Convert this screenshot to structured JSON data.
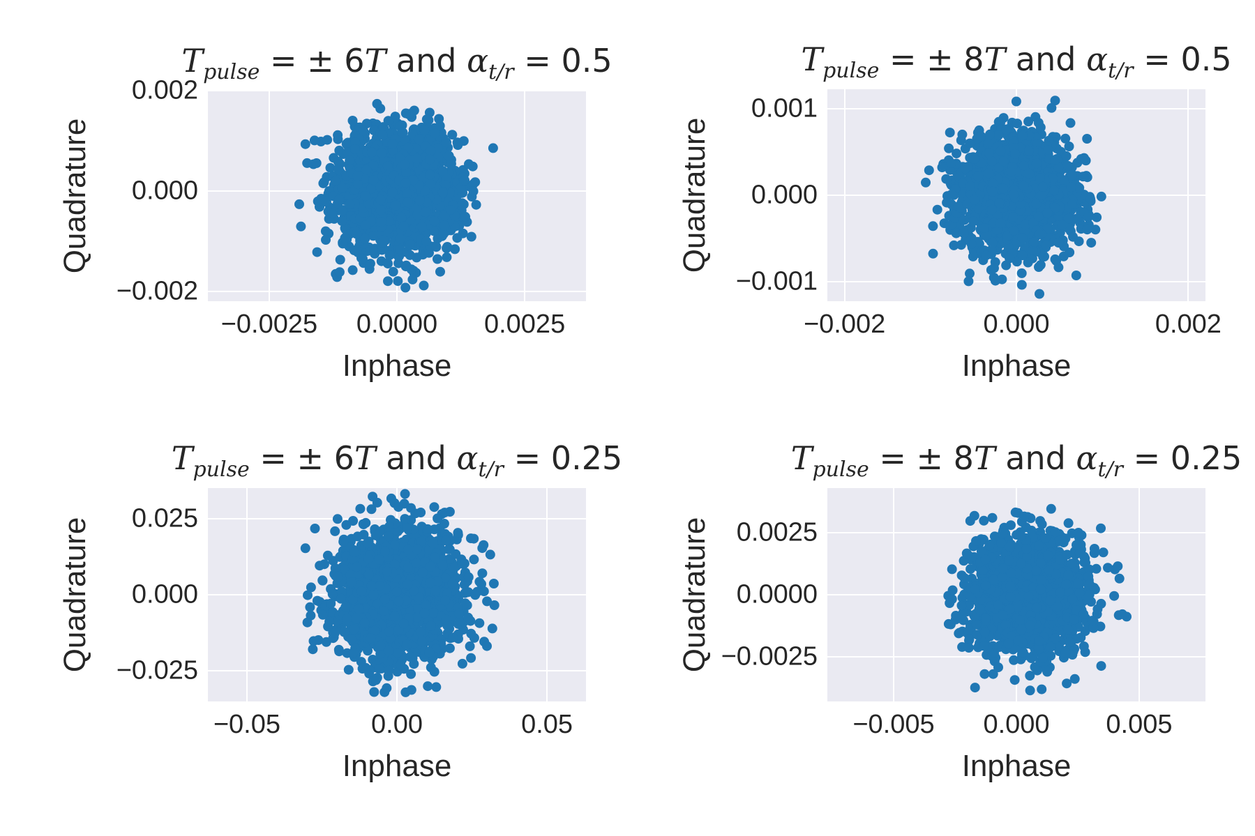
{
  "figure": {
    "point_color": "#1f77b4",
    "background_color": "#eaeaf2",
    "grid_color": "#ffffff"
  },
  "chart_data": [
    {
      "type": "scatter",
      "title": "T_pulse = ± 6T and α_t/r = 0.5",
      "title_parts": {
        "T": "T",
        "T_sub": "pulse",
        "eq1": " = ± 6",
        "T2": "T",
        "and": " and ",
        "alpha": "α",
        "alpha_sub": "t/r",
        "eq2": " = 0.5"
      },
      "xlabel": "Inphase",
      "ylabel": "Quadrature",
      "xlim": [
        -0.0037,
        0.0037
      ],
      "ylim": [
        -0.0022,
        0.002
      ],
      "xticks": [
        -0.0025,
        0.0,
        0.0025
      ],
      "xtick_labels": [
        "−0.0025",
        "0.0000",
        "0.0025"
      ],
      "yticks": [
        -0.002,
        0.0,
        0.002
      ],
      "ytick_labels": [
        "−0.002",
        "0.000",
        "0.002"
      ],
      "grid": true,
      "distribution": {
        "shape": "gaussian cloud",
        "center": [
          0.0,
          0.0
        ],
        "sigma_x": 0.0006,
        "sigma_y": 0.0006,
        "n_points": 1800,
        "max_abs_x": 0.002,
        "max_abs_y": 0.002
      }
    },
    {
      "type": "scatter",
      "title": "T_pulse = ± 8T and α_t/r = 0.5",
      "title_parts": {
        "T": "T",
        "T_sub": "pulse",
        "eq1": " = ± 8",
        "T2": "T",
        "and": " and ",
        "alpha": "α",
        "alpha_sub": "t/r",
        "eq2": " = 0.5"
      },
      "xlabel": "Inphase",
      "ylabel": "Quadrature",
      "xlim": [
        -0.0022,
        0.0022
      ],
      "ylim": [
        -0.00123,
        0.00123
      ],
      "xticks": [
        -0.002,
        0.0,
        0.002
      ],
      "xtick_labels": [
        "−0.002",
        "0.000",
        "0.002"
      ],
      "yticks": [
        -0.001,
        0.0,
        0.001
      ],
      "ytick_labels": [
        "−0.001",
        "0.000",
        "0.001"
      ],
      "grid": true,
      "distribution": {
        "shape": "gaussian cloud",
        "center": [
          0.0,
          0.0
        ],
        "sigma_x": 0.00034,
        "sigma_y": 0.00034,
        "n_points": 1800,
        "max_abs_x": 0.0011,
        "max_abs_y": 0.0012
      }
    },
    {
      "type": "scatter",
      "title": "T_pulse = ± 6T and α_t/r = 0.25",
      "title_parts": {
        "T": "T",
        "T_sub": "pulse",
        "eq1": " = ± 6",
        "T2": "T",
        "and": " and ",
        "alpha": "α",
        "alpha_sub": "t/r",
        "eq2": " = 0.25"
      },
      "xlabel": "Inphase",
      "ylabel": "Quadrature",
      "xlim": [
        -0.063,
        0.063
      ],
      "ylim": [
        -0.035,
        0.035
      ],
      "xticks": [
        -0.05,
        0.0,
        0.05
      ],
      "xtick_labels": [
        "−0.05",
        "0.00",
        "0.05"
      ],
      "yticks": [
        -0.025,
        0.0,
        0.025
      ],
      "ytick_labels": [
        "−0.025",
        "0.000",
        "0.025"
      ],
      "grid": true,
      "distribution": {
        "shape": "square-ish cloud",
        "center": [
          0.0,
          0.0
        ],
        "sigma_x": 0.011,
        "sigma_y": 0.011,
        "n_points": 1800,
        "max_abs_x": 0.033,
        "max_abs_y": 0.034
      }
    },
    {
      "type": "scatter",
      "title": "T_pulse = ± 8T and α_t/r = 0.25",
      "title_parts": {
        "T": "T",
        "T_sub": "pulse",
        "eq1": " = ± 8",
        "T2": "T",
        "and": " and ",
        "alpha": "α",
        "alpha_sub": "t/r",
        "eq2": " = 0.25"
      },
      "xlabel": "Inphase",
      "ylabel": "Quadrature",
      "xlim": [
        -0.0077,
        0.0077
      ],
      "ylim": [
        -0.0043,
        0.0043
      ],
      "xticks": [
        -0.005,
        0.0,
        0.005
      ],
      "xtick_labels": [
        "−0.005",
        "0.000",
        "0.005"
      ],
      "yticks": [
        -0.0025,
        0.0,
        0.0025
      ],
      "ytick_labels": [
        "−0.0025",
        "0.0000",
        "0.0025"
      ],
      "grid": true,
      "distribution": {
        "shape": "gaussian cloud",
        "center": [
          0.0005,
          0.0
        ],
        "sigma_x": 0.0012,
        "sigma_y": 0.0012,
        "n_points": 1800,
        "max_abs_x": 0.004,
        "max_abs_y": 0.004
      }
    }
  ]
}
